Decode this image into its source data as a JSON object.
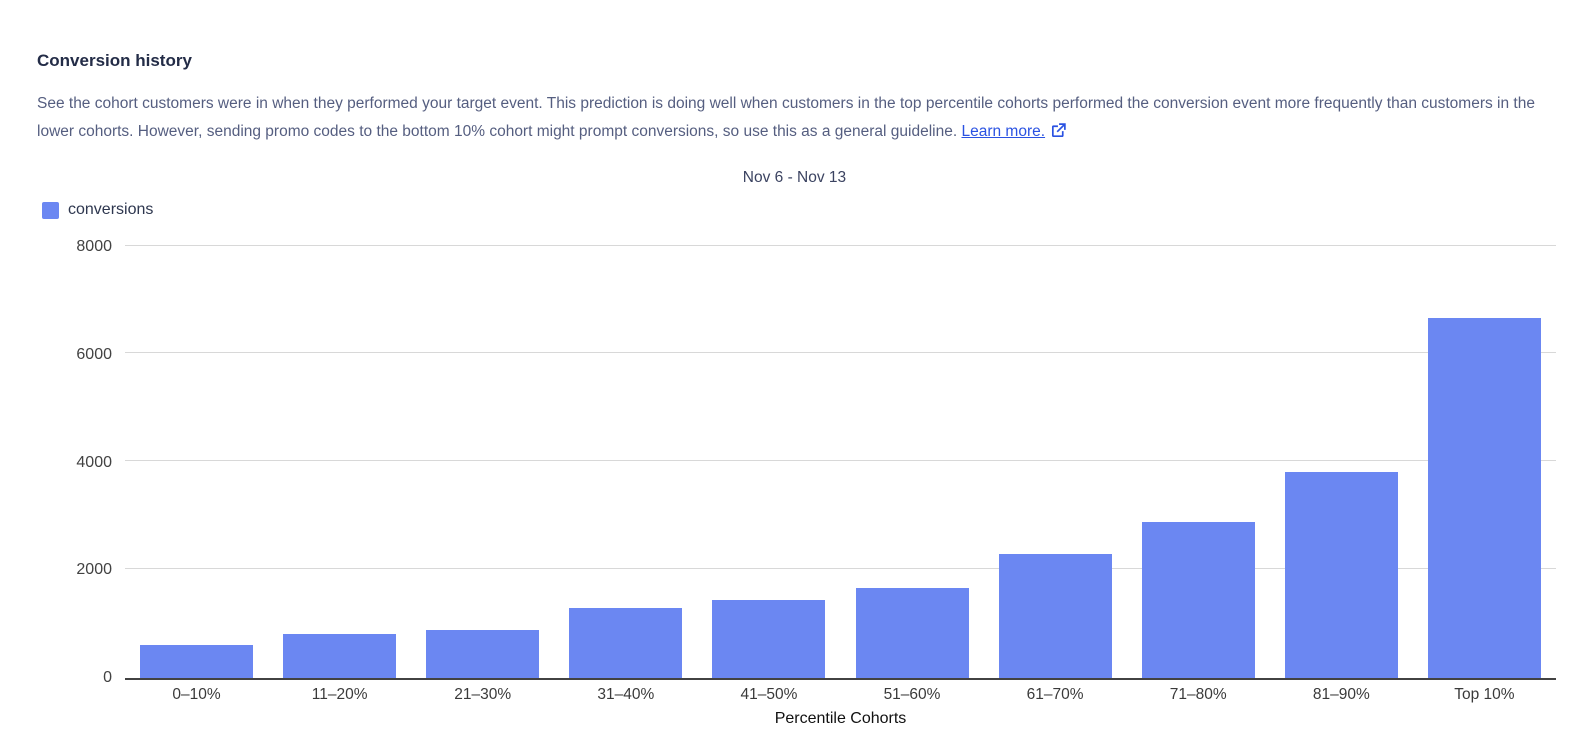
{
  "header": {
    "title": "Conversion history",
    "description": "See the cohort customers were in when they performed your target event. This prediction is doing well when customers in the top percentile cohorts performed the conversion event more frequently than customers in the lower cohorts. However, sending promo codes to the bottom 10% cohort might prompt conversions, so use this as a general guideline.",
    "learn_more_label": "Learn more."
  },
  "chart": {
    "date_range": "Nov 6 - Nov 13",
    "legend_label": "conversions"
  },
  "chart_data": {
    "type": "bar",
    "title": "Nov 6 - Nov 13",
    "categories": [
      "0–10%",
      "11–20%",
      "21–30%",
      "31–40%",
      "41–50%",
      "51–60%",
      "61–70%",
      "71–80%",
      "81–90%",
      "Top 10%"
    ],
    "series": [
      {
        "name": "conversions",
        "values": [
          620,
          810,
          900,
          1300,
          1450,
          1670,
          2300,
          2890,
          3830,
          6680
        ]
      }
    ],
    "xlabel": "Percentile Cohorts",
    "ylabel": "",
    "ylim": [
      0,
      8000
    ],
    "yticks": [
      0,
      2000,
      4000,
      6000,
      8000
    ],
    "grid": true,
    "legend_position": "top-left",
    "bar_color": "#6b87f2"
  },
  "colors": {
    "bar": "#6b87f2",
    "link": "#2a52e2",
    "title_text": "#232c47",
    "body_text": "#555e80",
    "axis_baseline": "#424242",
    "gridline": "#d8d8d8"
  }
}
